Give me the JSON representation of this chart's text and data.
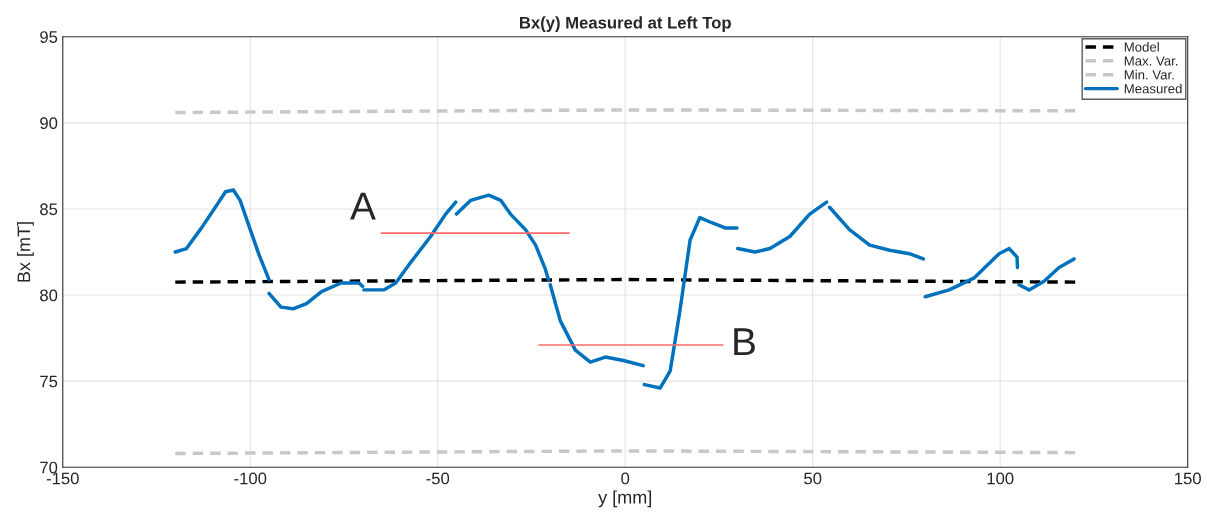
{
  "chart_data": {
    "type": "line",
    "title": "Bx(y) Measured at Left Top",
    "xlabel": "y [mm]",
    "ylabel": "Bx [mT]",
    "xlim": [
      -150,
      150
    ],
    "xticks": [
      -150,
      -100,
      -50,
      0,
      50,
      100,
      150
    ],
    "ylim": [
      70,
      95
    ],
    "yticks": [
      70,
      75,
      80,
      85,
      90,
      95
    ],
    "grid": true,
    "legend": "top right",
    "series": [
      {
        "name": "Model",
        "color": "#000000",
        "line_style": "dashed",
        "x": [
          -120,
          0,
          120
        ],
        "values": [
          80.75,
          80.9,
          80.75
        ]
      },
      {
        "name": "Max. Var.",
        "color": "#c8c8c8",
        "line_style": "dashed",
        "x": [
          -120,
          0,
          120
        ],
        "values": [
          90.6,
          90.75,
          90.7
        ]
      },
      {
        "name": "Min. Var.",
        "color": "#c8c8c8",
        "line_style": "dashed",
        "x": [
          -120,
          0,
          120
        ],
        "values": [
          70.8,
          70.95,
          70.85
        ]
      },
      {
        "name": "Measured",
        "color": "#0072bd",
        "line_style": "solid",
        "x": [
          -120,
          -117,
          -113,
          -109,
          -106.6,
          -104.5,
          -102.7,
          -100,
          -97.6,
          -95
        ],
        "values": [
          82.5,
          82.7,
          83.9,
          85.2,
          86.0,
          86.1,
          85.5,
          83.8,
          82.3,
          80.9
        ]
      },
      {
        "color": "#0072bd",
        "line_style": "solid",
        "x": [
          -95,
          -91.8,
          -88.6,
          -85,
          -81,
          -75.8,
          -71,
          -70
        ],
        "values": [
          80.1,
          79.3,
          79.2,
          79.5,
          80.2,
          80.7,
          80.7,
          80.5
        ]
      },
      {
        "color": "#0072bd",
        "line_style": "solid",
        "x": [
          -69.7,
          -64.4,
          -61.2,
          -57.2,
          -51.9,
          -47.9,
          -45.2
        ],
        "values": [
          80.3,
          80.3,
          80.7,
          81.9,
          83.4,
          84.7,
          85.4
        ]
      },
      {
        "color": "#0072bd",
        "line_style": "solid",
        "x": [
          -45,
          -41.2,
          -36.4,
          -33.2,
          -30.6,
          -26.6,
          -23.9,
          -21.3,
          -20.5
        ],
        "values": [
          84.7,
          85.5,
          85.8,
          85.5,
          84.7,
          83.8,
          82.9,
          81.5,
          80.9
        ]
      },
      {
        "color": "#0072bd",
        "line_style": "solid",
        "x": [
          -20,
          -17.3,
          -13.3,
          -9.3,
          -5.3,
          -0.5,
          4.8
        ],
        "values": [
          80.6,
          78.5,
          76.8,
          76.1,
          76.4,
          76.2,
          75.9
        ]
      },
      {
        "color": "#0072bd",
        "line_style": "solid",
        "x": [
          5.1,
          9.3,
          12,
          14.6,
          17.3,
          19.9,
          23.1,
          26.6,
          29.8
        ],
        "values": [
          74.8,
          74.6,
          75.6,
          79.1,
          83.2,
          84.5,
          84.2,
          83.9,
          83.9
        ]
      },
      {
        "color": "#0072bd",
        "line_style": "solid",
        "x": [
          30,
          34.6,
          38.6,
          43.9,
          49.2,
          53.7
        ],
        "values": [
          82.7,
          82.5,
          82.7,
          83.4,
          84.7,
          85.4
        ]
      },
      {
        "color": "#0072bd",
        "line_style": "solid",
        "x": [
          54.5,
          59.8,
          65.2,
          70.5,
          75.8,
          79.5
        ],
        "values": [
          85.1,
          83.8,
          82.9,
          82.6,
          82.4,
          82.1
        ]
      },
      {
        "color": "#0072bd",
        "line_style": "solid",
        "x": [
          80,
          86.4,
          93.1,
          99.7,
          102.4,
          104.5,
          104.6
        ],
        "values": [
          79.9,
          80.3,
          81.0,
          82.4,
          82.7,
          82.2,
          81.6
        ]
      },
      {
        "color": "#0072bd",
        "line_style": "solid",
        "x": [
          105,
          107.7,
          111.7,
          115.7,
          119.7
        ],
        "values": [
          80.6,
          80.3,
          80.8,
          81.6,
          82.1
        ]
      },
      {
        "color": "#ff6b6b",
        "line_style": "solid",
        "x": [
          -65,
          -15
        ],
        "values": [
          83.6,
          83.6
        ]
      },
      {
        "color": "#ff6b6b",
        "line_style": "solid",
        "x": [
          -23,
          26
        ],
        "values": [
          77.1,
          77.1
        ]
      }
    ],
    "annotations": [
      {
        "text": "A",
        "x": -65,
        "y": 83.6
      },
      {
        "text": "B",
        "x": 26,
        "y": 77.1
      }
    ]
  }
}
